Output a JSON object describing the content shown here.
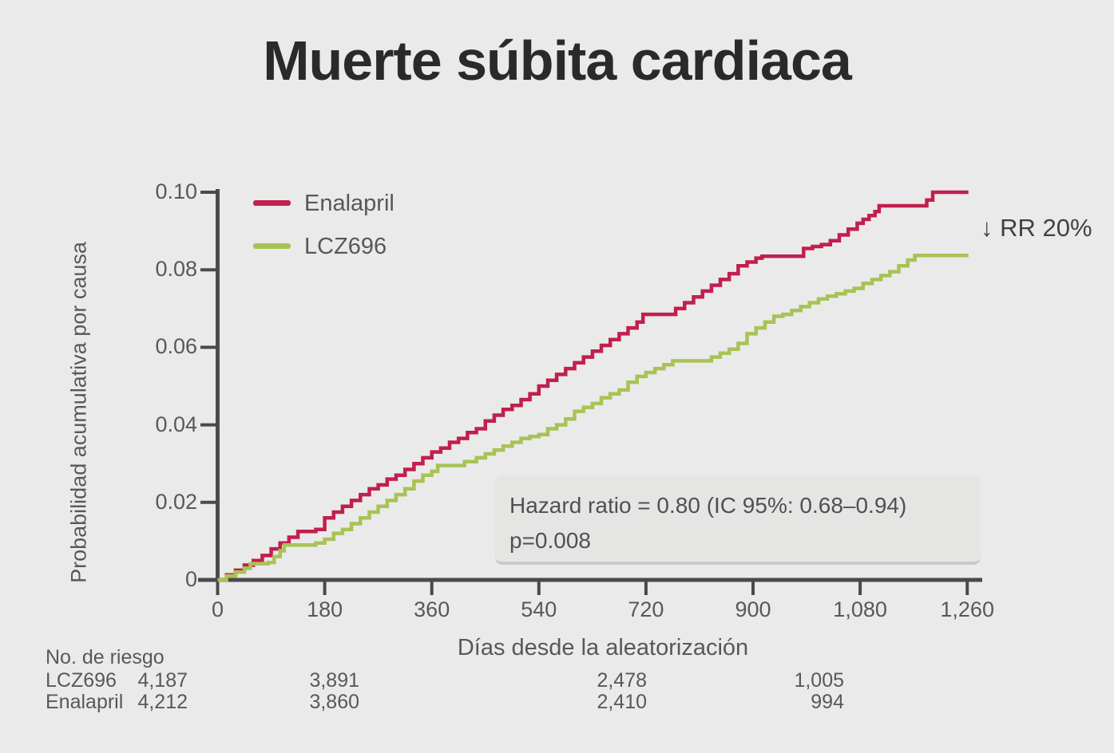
{
  "title": "Muerte súbita cardiaca",
  "colors": {
    "background": "#eaeaea",
    "axis": "#4a4a4c",
    "text": "#58585a",
    "title_text": "#2a2a2a",
    "box_bg": "#e5e5e4",
    "box_border": "#c9c9c9",
    "enalapril": "#c11f4e",
    "lcz696": "#a8c355"
  },
  "legend": [
    {
      "label": "Enalapril",
      "color": "#c11f4e"
    },
    {
      "label": "LCZ696",
      "color": "#a8c355"
    }
  ],
  "annotation_box": {
    "line1": "Hazard ratio = 0.80  (IC 95%: 0.68–0.94)",
    "line2": "p=0.008"
  },
  "rr_label": "↓ RR 20%",
  "chart_data": {
    "type": "line",
    "subtype": "step-cumulative-incidence",
    "title": "Muerte súbita cardiaca",
    "xlabel": "Días desde la aleatorización",
    "ylabel": "Probabilidad acumulativa por causa",
    "xlim": [
      0,
      1300
    ],
    "ylim": [
      0,
      0.1
    ],
    "grid": false,
    "legend_position": "top-left-inside",
    "x_ticks": {
      "values": [
        0,
        180,
        360,
        540,
        720,
        900,
        1080,
        1260
      ],
      "labels": [
        "0",
        "180",
        "360",
        "540",
        "720",
        "900",
        "1,080",
        "1,260"
      ]
    },
    "y_ticks": {
      "values": [
        0,
        0.02,
        0.04,
        0.06,
        0.08,
        0.1
      ],
      "labels": [
        "0",
        "0.02",
        "0.04",
        "0.06",
        "0.08",
        "0.10"
      ]
    },
    "series": [
      {
        "name": "Enalapril",
        "color": "#c11f4e",
        "points": [
          [
            0,
            0
          ],
          [
            15,
            0.0013
          ],
          [
            30,
            0.0025
          ],
          [
            45,
            0.0038
          ],
          [
            60,
            0.005
          ],
          [
            75,
            0.0063
          ],
          [
            90,
            0.008
          ],
          [
            105,
            0.0095
          ],
          [
            120,
            0.011
          ],
          [
            135,
            0.0125
          ],
          [
            165,
            0.013
          ],
          [
            180,
            0.016
          ],
          [
            195,
            0.0175
          ],
          [
            210,
            0.019
          ],
          [
            225,
            0.0205
          ],
          [
            240,
            0.022
          ],
          [
            255,
            0.0235
          ],
          [
            270,
            0.0245
          ],
          [
            285,
            0.026
          ],
          [
            300,
            0.027
          ],
          [
            315,
            0.0285
          ],
          [
            330,
            0.03
          ],
          [
            345,
            0.0315
          ],
          [
            360,
            0.033
          ],
          [
            375,
            0.034
          ],
          [
            390,
            0.0355
          ],
          [
            405,
            0.0365
          ],
          [
            420,
            0.038
          ],
          [
            435,
            0.039
          ],
          [
            450,
            0.041
          ],
          [
            465,
            0.0425
          ],
          [
            480,
            0.044
          ],
          [
            495,
            0.045
          ],
          [
            510,
            0.0465
          ],
          [
            525,
            0.048
          ],
          [
            540,
            0.05
          ],
          [
            555,
            0.0515
          ],
          [
            570,
            0.053
          ],
          [
            585,
            0.0545
          ],
          [
            600,
            0.056
          ],
          [
            615,
            0.0575
          ],
          [
            630,
            0.059
          ],
          [
            645,
            0.0605
          ],
          [
            660,
            0.062
          ],
          [
            675,
            0.0635
          ],
          [
            690,
            0.065
          ],
          [
            705,
            0.0665
          ],
          [
            715,
            0.0685
          ],
          [
            755,
            0.0685
          ],
          [
            770,
            0.07
          ],
          [
            785,
            0.0715
          ],
          [
            800,
            0.073
          ],
          [
            815,
            0.0745
          ],
          [
            830,
            0.076
          ],
          [
            845,
            0.0775
          ],
          [
            860,
            0.079
          ],
          [
            875,
            0.081
          ],
          [
            890,
            0.082
          ],
          [
            905,
            0.083
          ],
          [
            915,
            0.0835
          ],
          [
            975,
            0.0835
          ],
          [
            985,
            0.0855
          ],
          [
            1000,
            0.086
          ],
          [
            1015,
            0.0865
          ],
          [
            1030,
            0.0875
          ],
          [
            1045,
            0.089
          ],
          [
            1060,
            0.0905
          ],
          [
            1075,
            0.092
          ],
          [
            1085,
            0.093
          ],
          [
            1095,
            0.094
          ],
          [
            1105,
            0.095
          ],
          [
            1112,
            0.0965
          ],
          [
            1185,
            0.0965
          ],
          [
            1192,
            0.098
          ],
          [
            1202,
            0.1
          ],
          [
            1262,
            0.1
          ]
        ]
      },
      {
        "name": "LCZ696",
        "color": "#a8c355",
        "points": [
          [
            0,
            0
          ],
          [
            15,
            0.001
          ],
          [
            30,
            0.002
          ],
          [
            45,
            0.003
          ],
          [
            55,
            0.0042
          ],
          [
            85,
            0.0045
          ],
          [
            95,
            0.006
          ],
          [
            105,
            0.0075
          ],
          [
            112,
            0.009
          ],
          [
            150,
            0.009
          ],
          [
            165,
            0.0095
          ],
          [
            180,
            0.0105
          ],
          [
            195,
            0.012
          ],
          [
            210,
            0.013
          ],
          [
            225,
            0.0145
          ],
          [
            240,
            0.016
          ],
          [
            255,
            0.0175
          ],
          [
            270,
            0.019
          ],
          [
            285,
            0.0205
          ],
          [
            300,
            0.022
          ],
          [
            315,
            0.0235
          ],
          [
            330,
            0.0255
          ],
          [
            345,
            0.027
          ],
          [
            360,
            0.028
          ],
          [
            370,
            0.0295
          ],
          [
            400,
            0.0295
          ],
          [
            415,
            0.0305
          ],
          [
            435,
            0.0315
          ],
          [
            450,
            0.0325
          ],
          [
            465,
            0.0335
          ],
          [
            480,
            0.0345
          ],
          [
            495,
            0.0355
          ],
          [
            510,
            0.0365
          ],
          [
            525,
            0.037
          ],
          [
            540,
            0.0375
          ],
          [
            555,
            0.039
          ],
          [
            570,
            0.04
          ],
          [
            585,
            0.0415
          ],
          [
            600,
            0.0435
          ],
          [
            615,
            0.0445
          ],
          [
            630,
            0.0455
          ],
          [
            645,
            0.047
          ],
          [
            660,
            0.048
          ],
          [
            675,
            0.049
          ],
          [
            690,
            0.051
          ],
          [
            705,
            0.0525
          ],
          [
            720,
            0.0535
          ],
          [
            735,
            0.0545
          ],
          [
            750,
            0.0555
          ],
          [
            765,
            0.0565
          ],
          [
            815,
            0.0565
          ],
          [
            830,
            0.0575
          ],
          [
            845,
            0.0585
          ],
          [
            860,
            0.0595
          ],
          [
            875,
            0.061
          ],
          [
            890,
            0.0635
          ],
          [
            905,
            0.065
          ],
          [
            920,
            0.0665
          ],
          [
            935,
            0.068
          ],
          [
            950,
            0.0685
          ],
          [
            965,
            0.0695
          ],
          [
            980,
            0.0705
          ],
          [
            995,
            0.0715
          ],
          [
            1010,
            0.0725
          ],
          [
            1025,
            0.0732
          ],
          [
            1040,
            0.0738
          ],
          [
            1055,
            0.0745
          ],
          [
            1070,
            0.0752
          ],
          [
            1085,
            0.0765
          ],
          [
            1100,
            0.0775
          ],
          [
            1115,
            0.0785
          ],
          [
            1130,
            0.0795
          ],
          [
            1145,
            0.081
          ],
          [
            1160,
            0.0825
          ],
          [
            1172,
            0.0837
          ],
          [
            1262,
            0.0837
          ]
        ]
      }
    ]
  },
  "risk_table": {
    "header": "No. de riesgo",
    "rows": [
      {
        "label": "LCZ696",
        "values": [
          "4,187",
          "3,891",
          "2,478",
          "1,005"
        ]
      },
      {
        "label": "Enalapril",
        "values": [
          "4,212",
          "3,860",
          "2,410",
          "994"
        ]
      }
    ]
  }
}
